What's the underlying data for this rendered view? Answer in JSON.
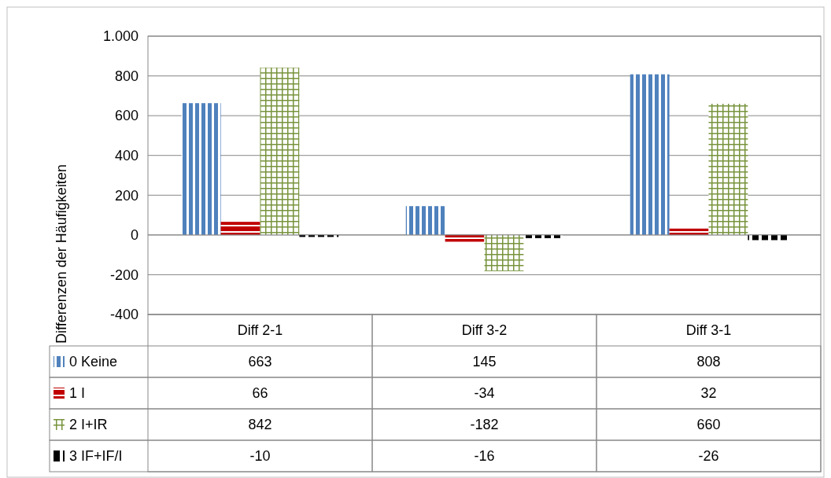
{
  "chart_data": {
    "type": "bar",
    "ylabel": "Differenzen der Häufigkeiten",
    "categories": [
      "Diff 2-1",
      "Diff 3-2",
      "Diff 3-1"
    ],
    "series": [
      {
        "name": "0 Keine",
        "color": "#4f81bd",
        "values": [
          663,
          145,
          808
        ]
      },
      {
        "name": "1 I",
        "color": "#c00000",
        "values": [
          66,
          -34,
          32
        ]
      },
      {
        "name": "2 I+IR",
        "color": "#77933c",
        "values": [
          842,
          -182,
          660
        ]
      },
      {
        "name": "3 IF+IF/I",
        "color": "#000000",
        "values": [
          -10,
          -16,
          -26
        ]
      }
    ],
    "ylim": [
      -400,
      1000
    ],
    "yticks": [
      -400,
      -200,
      0,
      200,
      400,
      600,
      800,
      {
        "value": 1000,
        "label": "1.000"
      }
    ],
    "grid": "y",
    "legend": "bottom",
    "data_labels": true
  }
}
